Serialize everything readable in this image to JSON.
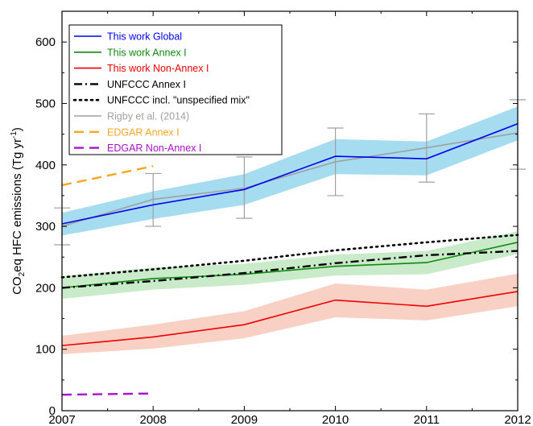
{
  "chart_data": {
    "type": "line",
    "title": "",
    "xlabel": "",
    "ylabel_main": "CO",
    "ylabel_sub": "2",
    "ylabel_rest": "eq HFC emissions (Tg yr",
    "ylabel_sup": "-1",
    "ylabel_close": ")",
    "xlim": [
      2007,
      2012
    ],
    "ylim": [
      0,
      650
    ],
    "x_ticks": [
      "2007",
      "2008",
      "2009",
      "2010",
      "2011",
      "2012"
    ],
    "y_ticks": [
      "0",
      "100",
      "200",
      "300",
      "400",
      "500",
      "600"
    ],
    "grid": false,
    "legend_position": "top-left",
    "series": [
      {
        "name": "This work Global",
        "color": "#0000ee",
        "dash": "solid",
        "x": [
          2007,
          2008,
          2009,
          2010,
          2011,
          2012
        ],
        "y": [
          304,
          335,
          360,
          414,
          410,
          467
        ],
        "band_low": [
          285,
          312,
          335,
          385,
          383,
          440
        ],
        "band_high": [
          322,
          357,
          385,
          442,
          438,
          495
        ],
        "band_color": "#a6dcef"
      },
      {
        "name": "This work Annex I",
        "color": "#118811",
        "dash": "solid",
        "x": [
          2007,
          2008,
          2009,
          2010,
          2011,
          2012
        ],
        "y": [
          200,
          215,
          222,
          235,
          241,
          274
        ],
        "band_low": [
          182,
          197,
          205,
          220,
          222,
          255
        ],
        "band_high": [
          219,
          233,
          239,
          254,
          260,
          292
        ],
        "band_color": "#c9ebc9"
      },
      {
        "name": "This work Non-Annex I",
        "color": "#ee0000",
        "dash": "solid",
        "x": [
          2007,
          2008,
          2009,
          2010,
          2011,
          2012
        ],
        "y": [
          106,
          120,
          140,
          180,
          170,
          194
        ],
        "band_low": [
          92,
          101,
          118,
          152,
          147,
          170
        ],
        "band_high": [
          122,
          140,
          162,
          207,
          197,
          223
        ],
        "band_color": "#f9d0c4"
      },
      {
        "name": "UNFCCC Annex I",
        "color": "#000000",
        "dash": "dashdot",
        "x": [
          2007,
          2008,
          2009,
          2010,
          2011,
          2012
        ],
        "y": [
          200,
          211,
          224,
          240,
          253,
          260
        ]
      },
      {
        "name": "UNFCCC incl. \"unspecified mix\"",
        "color": "#000000",
        "dash": "dotted",
        "x": [
          2007,
          2008,
          2009,
          2010,
          2011,
          2012
        ],
        "y": [
          217,
          230,
          244,
          261,
          274,
          286
        ]
      },
      {
        "name": "Rigby et al. (2014)",
        "color": "#a0a0a0",
        "dash": "solid",
        "x": [
          2007,
          2008,
          2009,
          2010,
          2011,
          2012
        ],
        "y": [
          300,
          344,
          362,
          405,
          428,
          452
        ],
        "errors": [
          {
            "x": 2007,
            "low": 270,
            "high": 330
          },
          {
            "x": 2008,
            "low": 300,
            "high": 386
          },
          {
            "x": 2009,
            "low": 313,
            "high": 413
          },
          {
            "x": 2010,
            "low": 350,
            "high": 460
          },
          {
            "x": 2011,
            "low": 372,
            "high": 483
          },
          {
            "x": 2012,
            "low": 393,
            "high": 506
          }
        ]
      },
      {
        "name": "EDGAR Annex I",
        "color": "#f5a623",
        "dash": "dashed",
        "x": [
          2007,
          2008
        ],
        "y": [
          367,
          398
        ]
      },
      {
        "name": "EDGAR Non-Annex I",
        "color": "#aa11cc",
        "dash": "dashed",
        "x": [
          2007,
          2008
        ],
        "y": [
          26,
          28
        ]
      }
    ]
  }
}
